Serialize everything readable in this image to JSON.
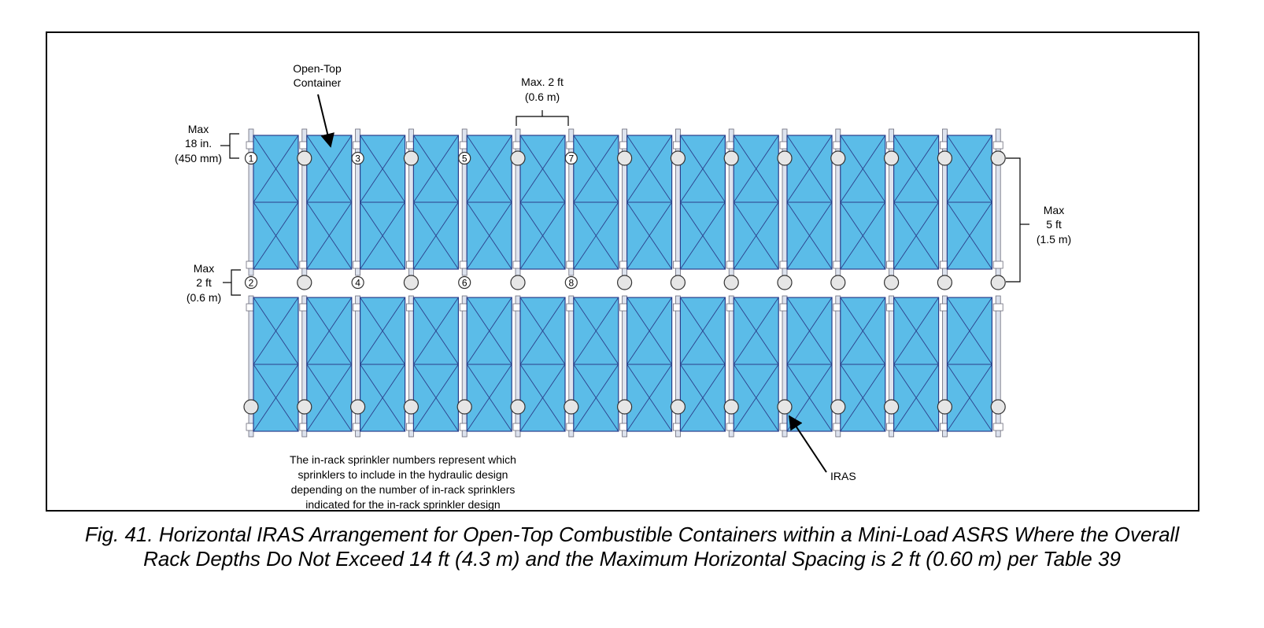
{
  "labels": {
    "open_top": [
      "Open-Top",
      "Container"
    ],
    "max_top_spacing": [
      "Max. 2 ft",
      "(0.6 m)"
    ],
    "max_18in": [
      "Max",
      "18 in.",
      "(450 mm)"
    ],
    "max_5ft": [
      "Max",
      "5 ft",
      "(1.5 m)"
    ],
    "max_2ft_side": [
      "Max",
      "2 ft",
      "(0.6 m)"
    ],
    "note": [
      "The in-rack sprinkler numbers represent which",
      "sprinklers to include in the hydraulic design",
      "depending on the number of in-rack sprinklers",
      "indicated for the in-rack sprinkler design"
    ],
    "iras": "IRAS"
  },
  "sprinkler_numbers": {
    "top_row": [
      "1",
      "",
      "3",
      "",
      "5",
      "",
      "7",
      "",
      "",
      "",
      "",
      "",
      "",
      "",
      ""
    ],
    "middle_row": [
      "2",
      "",
      "4",
      "",
      "6",
      "",
      "8",
      "",
      "",
      "",
      "",
      "",
      "",
      "",
      ""
    ]
  },
  "racks": {
    "columns": 14,
    "rows": 2
  },
  "colors": {
    "container_fill": "#5BBCE8",
    "container_stroke": "#2B3E8A",
    "sprinkler_fill": "#E6E6E6",
    "upright_fill": "#DDE3EE"
  },
  "caption": {
    "line1": "Fig. 41. Horizontal IRAS Arrangement for Open-Top Combustible Containers within a Mini-Load ASRS Where the Overall",
    "line2": "Rack Depths Do Not Exceed 14 ft (4.3 m) and the Maximum Horizontal Spacing is 2 ft (0.60 m) per Table 39"
  }
}
